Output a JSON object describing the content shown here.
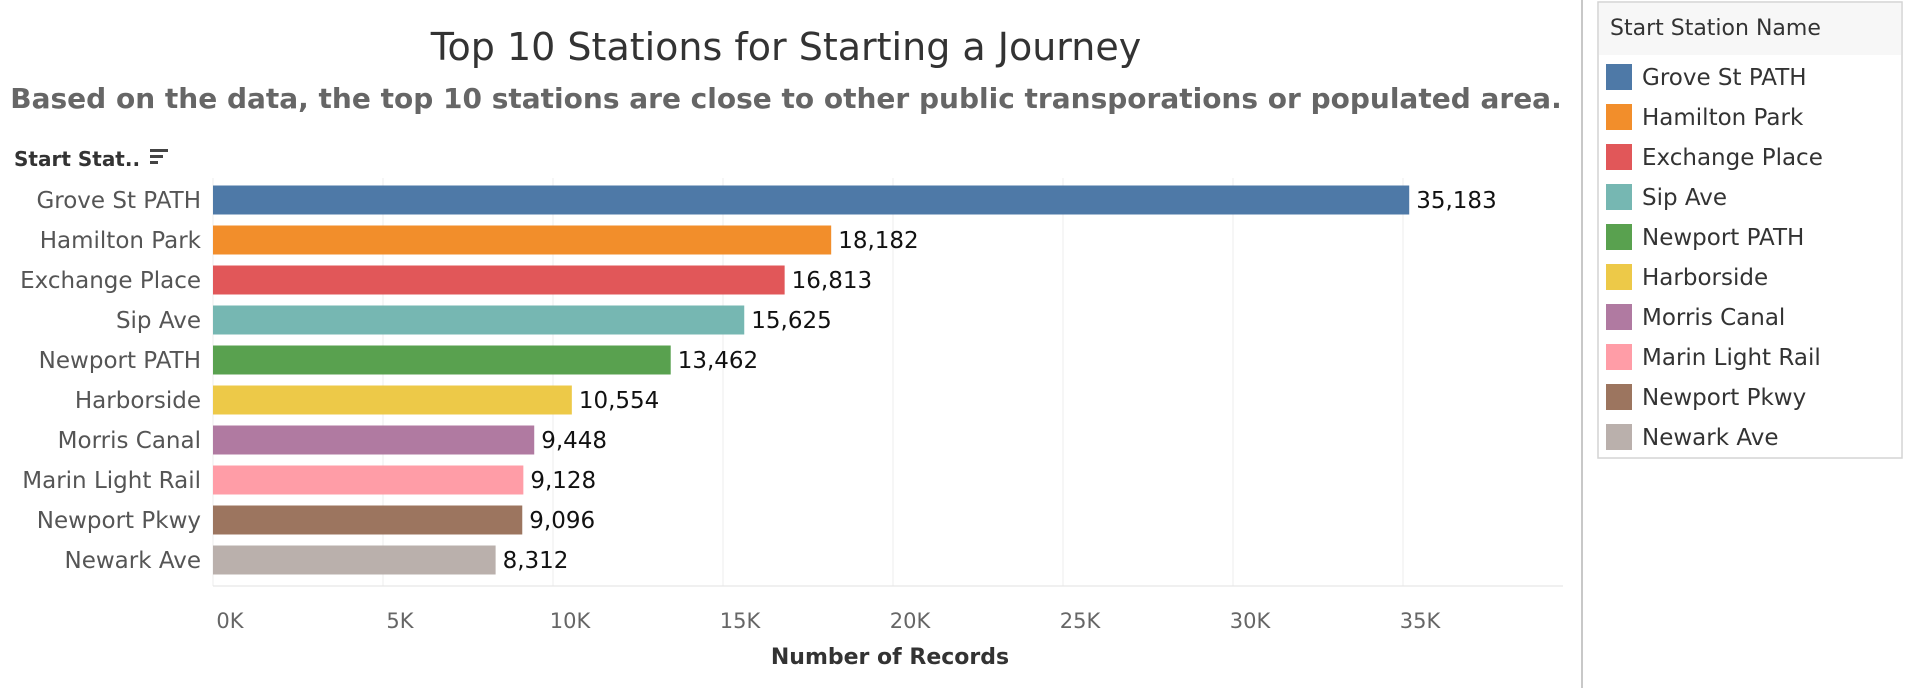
{
  "chart_data": {
    "type": "bar",
    "orientation": "horizontal",
    "title": "Top 10 Stations for Starting a Journey",
    "subtitle": "Based on the data, the top 10 stations are close to other public transporations or populated area.",
    "row_header": "Start Stat..",
    "xlabel": "Number of Records",
    "xlim": [
      0,
      40000
    ],
    "xticks": [
      0,
      5000,
      10000,
      15000,
      20000,
      25000,
      30000,
      35000
    ],
    "xtick_labels": [
      "0K",
      "5K",
      "10K",
      "15K",
      "20K",
      "25K",
      "30K",
      "35K"
    ],
    "grid": true,
    "legend_title": "Start Station Name",
    "legend_position": "right",
    "categories": [
      "Grove St PATH",
      "Hamilton Park",
      "Exchange Place",
      "Sip Ave",
      "Newport PATH",
      "Harborside",
      "Morris Canal",
      "Marin Light Rail",
      "Newport Pkwy",
      "Newark Ave"
    ],
    "values": [
      35183,
      18182,
      16813,
      15625,
      13462,
      10554,
      9448,
      9128,
      9096,
      8312
    ],
    "value_labels": [
      "35,183",
      "18,182",
      "16,813",
      "15,625",
      "13,462",
      "10,554",
      "9,448",
      "9,128",
      "9,096",
      "8,312"
    ],
    "colors": [
      "#4e79a7",
      "#f28e2b",
      "#e15759",
      "#76b7b2",
      "#59a14f",
      "#edc948",
      "#b07aa1",
      "#ff9da7",
      "#9c755f",
      "#bab0ac"
    ]
  }
}
